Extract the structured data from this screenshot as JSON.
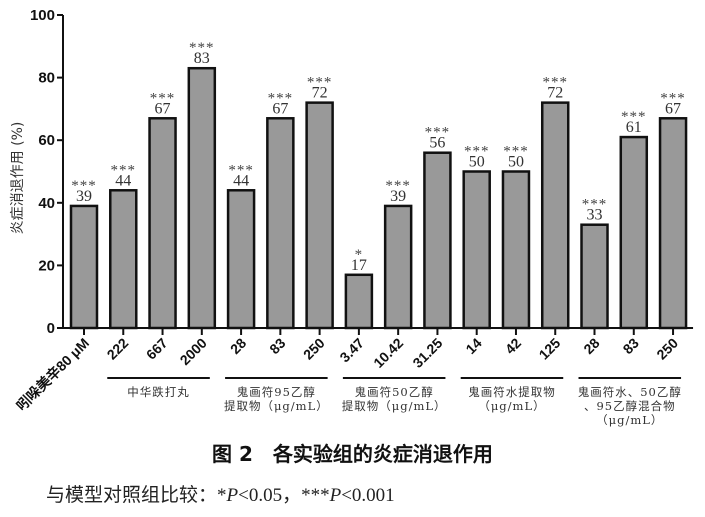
{
  "chart_data": {
    "type": "bar",
    "title": "图 2　各实验组的炎症消退作用",
    "ylabel": "炎症消退作用 (%)",
    "xlabel": "",
    "ylim": [
      0,
      100
    ],
    "yticks": [
      0,
      20,
      40,
      60,
      80,
      100
    ],
    "grid": false,
    "legend": null,
    "categories": [
      "吲哚美辛80 μM",
      "222",
      "667",
      "2000",
      "28",
      "83",
      "250",
      "3.47",
      "10.42",
      "31.25",
      "14",
      "42",
      "125",
      "28",
      "83",
      "250"
    ],
    "values": [
      39,
      44,
      67,
      83,
      44,
      67,
      72,
      17,
      39,
      56,
      50,
      50,
      72,
      33,
      61,
      67
    ],
    "significance": [
      "***",
      "***",
      "***",
      "***",
      "***",
      "***",
      "***",
      "*",
      "***",
      "***",
      "***",
      "***",
      "***",
      "***",
      "***",
      "***"
    ],
    "groups": [
      {
        "label": [
          "中华跌打丸"
        ],
        "start": 1,
        "end": 3
      },
      {
        "label": [
          "鬼画符95乙醇",
          "提取物（μg/mL）"
        ],
        "start": 4,
        "end": 6
      },
      {
        "label": [
          "鬼画符50乙醇",
          "提取物（μg/mL）"
        ],
        "start": 7,
        "end": 9
      },
      {
        "label": [
          "鬼画符水提取物",
          "（μg/mL）"
        ],
        "start": 10,
        "end": 12
      },
      {
        "label": [
          "鬼画符水、50乙醇",
          "、95乙醇混合物",
          "（μg/mL）"
        ],
        "start": 13,
        "end": 15
      }
    ],
    "bar_color": "#999999",
    "bar_edge": "#111111"
  },
  "caption": "图 2　各实验组的炎症消退作用",
  "note": {
    "prefix": "与模型对照组比较：",
    "s1": "*",
    "p1": "P",
    "t1": "<0.05，",
    "s2": "***",
    "p2": "P",
    "t2": "<0.001"
  }
}
